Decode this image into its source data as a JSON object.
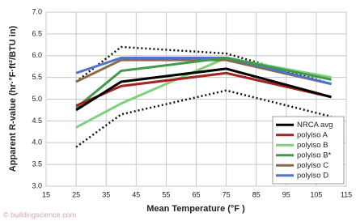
{
  "chart_data": {
    "type": "line",
    "x_label": "Mean Temperature (°F )",
    "y_label": "Apparent R-value (hr·°F·ft²/BTU in)",
    "watermark": "© buildingscience.com",
    "x": [
      25,
      40,
      75,
      110
    ],
    "xlim": [
      15,
      115
    ],
    "xticks": [
      15,
      25,
      35,
      45,
      55,
      65,
      75,
      85,
      95,
      105,
      115
    ],
    "ylim": [
      3,
      7
    ],
    "yticks": [
      {
        "value": 3,
        "label": "3.0"
      },
      {
        "value": 3.5,
        "label": "3.5"
      },
      {
        "value": 4,
        "label": "4.0"
      },
      {
        "value": 4.5,
        "label": "4.5"
      },
      {
        "value": 5,
        "label": "5.0"
      },
      {
        "value": 5.5,
        "label": "5.5"
      },
      {
        "value": 6,
        "label": "6.0"
      },
      {
        "value": 6.5,
        "label": "6.5"
      },
      {
        "value": 7,
        "label": "7.0"
      }
    ],
    "grid": true,
    "legend": "lower right",
    "series": [
      {
        "color": "#111111",
        "dashed": true,
        "values": [
          3.9,
          4.65,
          5.2,
          4.6
        ]
      },
      {
        "color": "#111111",
        "dashed": true,
        "values": [
          5.4,
          6.2,
          6.05,
          5.35
        ]
      },
      {
        "name": "polyiso B",
        "color": "#7fd07f",
        "values": [
          4.35,
          4.9,
          5.95,
          5.5
        ]
      },
      {
        "name": "polyiso C",
        "color": "#8b6a45",
        "values": [
          5.4,
          5.9,
          5.9,
          5.35
        ]
      },
      {
        "name": "polyiso D",
        "color": "#4f74c9",
        "values": [
          5.6,
          5.95,
          5.95,
          5.35
        ]
      },
      {
        "name": "polyiso B*",
        "color": "#3f9b4a",
        "values": [
          4.8,
          5.65,
          5.95,
          5.45
        ]
      },
      {
        "name": "polyiso A",
        "color": "#a3231f",
        "values": [
          4.85,
          5.3,
          5.6,
          5.05
        ]
      },
      {
        "name": "NRCA avg",
        "color": "#000000",
        "values": [
          4.75,
          5.4,
          5.7,
          5.05
        ]
      }
    ]
  }
}
